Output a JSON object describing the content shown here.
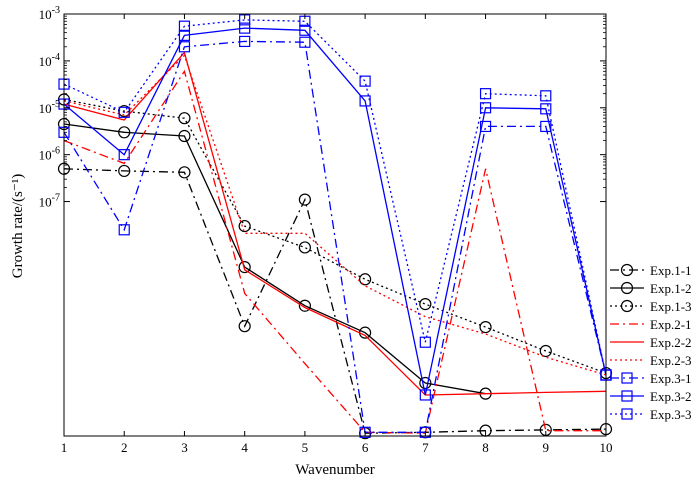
{
  "chart_data": {
    "type": "line",
    "title": "",
    "xlabel": "Wavenumber",
    "ylabel": "Growth rate/(s⁻¹)",
    "x": [
      1,
      2,
      3,
      4,
      5,
      6,
      7,
      8,
      9,
      10
    ],
    "xlim": [
      1,
      10
    ],
    "yscale": "log",
    "ylim": [
      1e-12,
      0.001
    ],
    "x_tick_labels": [
      "1",
      "2",
      "3",
      "4",
      "5",
      "6",
      "7",
      "8",
      "9",
      "10"
    ],
    "y_tick_labels": [
      {
        "value": 0.001,
        "base": "10",
        "exp": "-3"
      },
      {
        "value": 0.0001,
        "base": "10",
        "exp": "-4"
      },
      {
        "value": 1e-05,
        "base": "10",
        "exp": "-5"
      },
      {
        "value": 1e-06,
        "base": "10",
        "exp": "-6"
      },
      {
        "value": 1e-07,
        "base": "10",
        "exp": "-7"
      }
    ],
    "legend_position": "right",
    "series": [
      {
        "name": "Exp.1-1",
        "color": "#000000",
        "linestyle": "dashdot",
        "marker": "circle",
        "values": [
          5e-07,
          4.5e-07,
          4.2e-07,
          2.2e-10,
          1.1e-07,
          1.15e-12,
          1.2e-12,
          1.3e-12,
          1.35e-12,
          1.4e-12
        ]
      },
      {
        "name": "Exp.1-2",
        "color": "#000000",
        "linestyle": "solid",
        "marker": "circle",
        "values": [
          4.5e-06,
          3e-06,
          2.5e-06,
          4e-09,
          6e-10,
          1.6e-10,
          1.35e-11,
          8e-12,
          null,
          null
        ]
      },
      {
        "name": "Exp.1-3",
        "color": "#000000",
        "linestyle": "dotted",
        "marker": "circle",
        "values": [
          1.5e-05,
          8.5e-06,
          6e-06,
          3e-08,
          1.05e-08,
          2.2e-09,
          6.5e-10,
          2.1e-10,
          6.5e-11,
          2.2e-11
        ]
      },
      {
        "name": "Exp.2-1",
        "color": "#ff0000",
        "linestyle": "dashdot",
        "marker": "none",
        "values": [
          2e-06,
          6.5e-07,
          6e-05,
          1.1e-09,
          3.5e-11,
          1.2e-12,
          1.15e-12,
          5e-07,
          1.3e-12,
          1.3e-12
        ]
      },
      {
        "name": "Exp.2-2",
        "color": "#ff0000",
        "linestyle": "solid",
        "marker": "none",
        "values": [
          1.2e-05,
          5.5e-06,
          0.00015,
          3.5e-09,
          5.5e-10,
          1.4e-10,
          7.5e-12,
          8e-12,
          8.5e-12,
          9e-12
        ]
      },
      {
        "name": "Exp.2-3",
        "color": "#ff0000",
        "linestyle": "dotted",
        "marker": "none",
        "values": [
          1.4e-05,
          7e-06,
          0.00013,
          2.1e-08,
          2.1e-08,
          1.6e-09,
          3.5e-10,
          1.5e-10,
          4.8e-11,
          2e-11
        ]
      },
      {
        "name": "Exp.3-1",
        "color": "#0000ff",
        "linestyle": "dashdot",
        "marker": "square",
        "values": [
          3e-06,
          2.5e-08,
          0.0002,
          0.00026,
          0.00025,
          1.2e-12,
          1.2e-12,
          4e-06,
          4e-06,
          2e-11
        ]
      },
      {
        "name": "Exp.3-2",
        "color": "#0000ff",
        "linestyle": "solid",
        "marker": "square",
        "values": [
          1.2e-05,
          1e-06,
          0.00035,
          0.0005,
          0.00045,
          1.4e-05,
          7.5e-12,
          1e-05,
          9.5e-06,
          2e-11
        ]
      },
      {
        "name": "Exp.3-3",
        "color": "#0000ff",
        "linestyle": "dotted",
        "marker": "square",
        "values": [
          3.2e-05,
          8e-06,
          0.00055,
          0.00075,
          0.0007,
          3.7e-05,
          1e-10,
          2e-05,
          1.8e-05,
          2e-11
        ]
      }
    ]
  }
}
